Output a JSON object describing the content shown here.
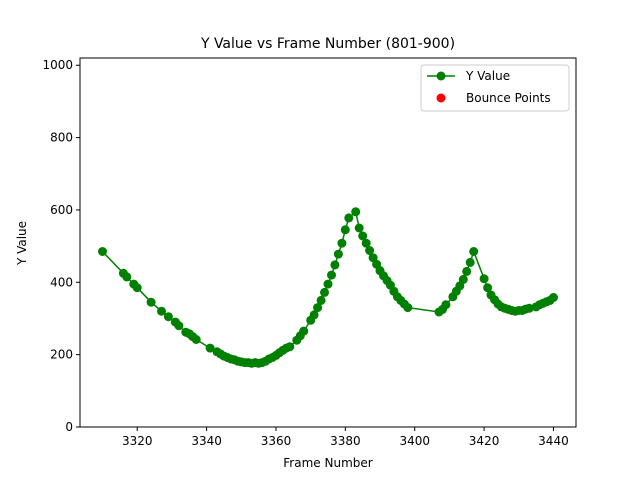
{
  "chart_data": {
    "type": "line",
    "title": "Y Value vs Frame Number (801-900)",
    "xlabel": "Frame Number",
    "ylabel": "Y Value",
    "xlim": [
      3303.5,
      3446.5
    ],
    "ylim": [
      0,
      1020
    ],
    "xticks": [
      3320,
      3340,
      3360,
      3380,
      3400,
      3420,
      3440
    ],
    "yticks": [
      0,
      200,
      400,
      600,
      800,
      1000
    ],
    "grid": false,
    "legend_position": "top-right",
    "series": [
      {
        "name": "Y Value",
        "color": "#008000",
        "marker": "circle",
        "x": [
          3310,
          3316,
          3317,
          3319,
          3320,
          3324,
          3327,
          3329,
          3331,
          3332,
          3334,
          3335,
          3336,
          3337,
          3341,
          3343,
          3344,
          3345,
          3346,
          3347,
          3348,
          3349,
          3350,
          3351,
          3352,
          3353,
          3354,
          3355,
          3356,
          3357,
          3358,
          3359,
          3360,
          3361,
          3362,
          3363,
          3364,
          3366,
          3367,
          3368,
          3370,
          3371,
          3372,
          3373,
          3374,
          3375,
          3376,
          3377,
          3378,
          3379,
          3380,
          3381,
          3383,
          3384,
          3385,
          3386,
          3387,
          3388,
          3389,
          3390,
          3391,
          3392,
          3393,
          3394,
          3395,
          3396,
          3397,
          3398,
          3407,
          3408,
          3409,
          3411,
          3412,
          3413,
          3414,
          3415,
          3416,
          3417,
          3420,
          3421,
          3422,
          3423,
          3424,
          3425,
          3426,
          3427,
          3428,
          3429,
          3430,
          3431,
          3432,
          3433,
          3435,
          3436,
          3437,
          3438,
          3439,
          3440
        ],
        "y": [
          485,
          425,
          415,
          395,
          385,
          345,
          320,
          305,
          290,
          280,
          262,
          258,
          250,
          242,
          218,
          208,
          202,
          196,
          192,
          188,
          186,
          182,
          180,
          178,
          178,
          176,
          178,
          176,
          178,
          182,
          188,
          192,
          198,
          205,
          212,
          218,
          222,
          240,
          252,
          265,
          295,
          310,
          330,
          350,
          372,
          395,
          420,
          448,
          478,
          508,
          545,
          578,
          595,
          550,
          528,
          508,
          488,
          468,
          450,
          432,
          418,
          405,
          392,
          375,
          360,
          350,
          340,
          330,
          318,
          325,
          338,
          360,
          375,
          390,
          408,
          430,
          455,
          485,
          410,
          385,
          365,
          352,
          340,
          332,
          328,
          325,
          322,
          320,
          322,
          322,
          326,
          328,
          332,
          338,
          342,
          346,
          350,
          358
        ]
      },
      {
        "name": "Bounce Points",
        "color": "#ff0000",
        "marker": "circle",
        "x": [],
        "y": []
      }
    ]
  }
}
